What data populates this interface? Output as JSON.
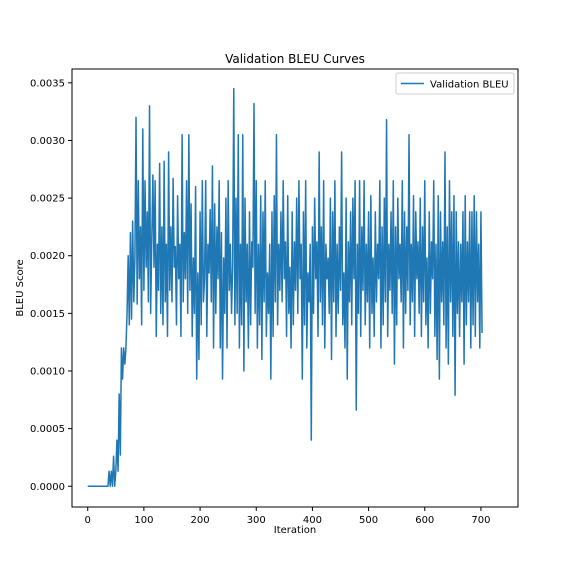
{
  "chart_data": {
    "type": "line",
    "title": "Validation BLEU Curves",
    "xlabel": "Iteration",
    "ylabel": "BLEU Score",
    "xlim": [
      -28,
      766
    ],
    "ylim": [
      -0.00018,
      0.00362
    ],
    "xticks": [
      0,
      100,
      200,
      300,
      400,
      500,
      600,
      700
    ],
    "xtick_labels": [
      "0",
      "100",
      "200",
      "300",
      "400",
      "500",
      "600",
      "700"
    ],
    "yticks": [
      0.0,
      0.0005,
      0.001,
      0.0015,
      0.002,
      0.0025,
      0.003,
      0.0035
    ],
    "ytick_labels": [
      "0.0000",
      "0.0005",
      "0.0010",
      "0.0015",
      "0.0020",
      "0.0025",
      "0.0030",
      "0.0035"
    ],
    "grid": false,
    "legend": {
      "position": "top-right",
      "entries": [
        "Validation BLEU"
      ]
    },
    "series": [
      {
        "name": "Validation BLEU",
        "color": "#1f77b4",
        "x_start": 0,
        "x_step": 2,
        "y": [
          0,
          0,
          0,
          0,
          0,
          0,
          0,
          0,
          0,
          0,
          0,
          0,
          0,
          0,
          0,
          0,
          0,
          0,
          0,
          0.00013,
          0,
          0.00013,
          0,
          0.00026,
          0,
          0.00013,
          0.0004,
          0.00013,
          0.0008,
          0.00027,
          0.0012,
          0.00093,
          0.0012,
          0.00106,
          0.0012,
          0.0015,
          0.002,
          0.0014,
          0.0022,
          0.00145,
          0.0023,
          0.0016,
          0.00198,
          0.0032,
          0.00158,
          0.00265,
          0.0018,
          0.00225,
          0.0014,
          0.0031,
          0.0017,
          0.00265,
          0.0019,
          0.00238,
          0.0016,
          0.0033,
          0.0015,
          0.00213,
          0.0027,
          0.0019,
          0.00265,
          0.0013,
          0.0021,
          0.0017,
          0.0028,
          0.0015,
          0.00225,
          0.0014,
          0.00282,
          0.0016,
          0.0021,
          0.0013,
          0.0029,
          0.0017,
          0.00225,
          0.0016,
          0.00267,
          0.0019,
          0.00208,
          0.0014,
          0.00252,
          0.0018,
          0.0021,
          0.0013,
          0.00305,
          0.0016,
          0.0022,
          0.0018,
          0.00265,
          0.0015,
          0.00305,
          0.0017,
          0.00245,
          0.0013,
          0.00198,
          0.0015,
          0.0026,
          0.00093,
          0.00185,
          0.0011,
          0.00238,
          0.0014,
          0.00265,
          0.0016,
          0.0018,
          0.00265,
          0.0013,
          0.0021,
          0.00185,
          0.0024,
          0.0016,
          0.00278,
          0.0012,
          0.00245,
          0.0015,
          0.00225,
          0.0018,
          0.00265,
          0.0012,
          0.0022,
          0.00093,
          0.00198,
          0.0015,
          0.0025,
          0.0012,
          0.00265,
          0.0017,
          0.0021,
          0.0015,
          0.0019,
          0.00345,
          0.0014,
          0.0025,
          0.0015,
          0.00305,
          0.0012,
          0.0021,
          0.0014,
          0.00305,
          0.001,
          0.0025,
          0.0016,
          0.0021,
          0.0012,
          0.00238,
          0.0014,
          0.00212,
          0.0019,
          0.00332,
          0.0015,
          0.00265,
          0.0012,
          0.0021,
          0.0014,
          0.00252,
          0.0011,
          0.00238,
          0.0016,
          0.00265,
          0.0013,
          0.00185,
          0.0015,
          0.0021,
          0.00093,
          0.00238,
          0.0013,
          0.00252,
          0.0016,
          0.00305,
          0.0014,
          0.0021,
          0.0017,
          0.00238,
          0.0016,
          0.00265,
          0.0018,
          0.00212,
          0.0013,
          0.00252,
          0.0015,
          0.0019,
          0.0012,
          0.00238,
          0.0014,
          0.00212,
          0.0017,
          0.0025,
          0.0015,
          0.00265,
          0.0018,
          0.0021,
          0.00093,
          0.00238,
          0.0014,
          0.00265,
          0.0012,
          0.00185,
          0.0016,
          0.0021,
          0.0004,
          0.00225,
          0.0015,
          0.0025,
          0.0018,
          0.00212,
          0.0013,
          0.0029,
          0.0016,
          0.00225,
          0.0014,
          0.00265,
          0.0012,
          0.0021,
          0.0018,
          0.00198,
          0.0015,
          0.0025,
          0.0011,
          0.00238,
          0.0016,
          0.00265,
          0.0013,
          0.0021,
          0.0015,
          0.00225,
          0.0017,
          0.0029,
          0.0014,
          0.00185,
          0.0012,
          0.0025,
          0.00093,
          0.00212,
          0.0016,
          0.00238,
          0.0014,
          0.0025,
          0.0018,
          0.00265,
          0.00066,
          0.0021,
          0.0015,
          0.00265,
          0.0013,
          0.00225,
          0.0017,
          0.00265,
          0.0014,
          0.0021,
          0.0016,
          0.00238,
          0.0012,
          0.00252,
          0.0015,
          0.00198,
          0.0013,
          0.00238,
          0.0016,
          0.0021,
          0.0018,
          0.00265,
          0.0012,
          0.00225,
          0.0014,
          0.0025,
          0.0016,
          0.00318,
          0.0013,
          0.0021,
          0.0017,
          0.00238,
          0.0015,
          0.00265,
          0.00106,
          0.00225,
          0.0014,
          0.0025,
          0.0018,
          0.0021,
          0.0016,
          0.00265,
          0.0012,
          0.00238,
          0.0015,
          0.00225,
          0.0017,
          0.00305,
          0.0014,
          0.0021,
          0.0016,
          0.00252,
          0.0013,
          0.00238,
          0.0018,
          0.00212,
          0.0015,
          0.0025,
          0.0013,
          0.00225,
          0.0016,
          0.00265,
          0.0014,
          0.00198,
          0.0012,
          0.00238,
          0.0015,
          0.00212,
          0.0018,
          0.00265,
          0.0013,
          0.0021,
          0.0011,
          0.00252,
          0.00093,
          0.00238,
          0.0016,
          0.00212,
          0.0014,
          0.0029,
          0.0012,
          0.00225,
          0.00106,
          0.00265,
          0.0016,
          0.00238,
          0.0013,
          0.00252,
          0.00079,
          0.00238,
          0.0015,
          0.00212,
          0.0013,
          0.0021,
          0.0016,
          0.00238,
          0.00106,
          0.00252,
          0.0014,
          0.00212,
          0.0016,
          0.00238,
          0.0012,
          0.00238,
          0.0014,
          0.00252,
          0.0013,
          0.00238,
          0.0016,
          0.0021,
          0.0012,
          0.00238,
          0.00133
        ]
      }
    ]
  }
}
